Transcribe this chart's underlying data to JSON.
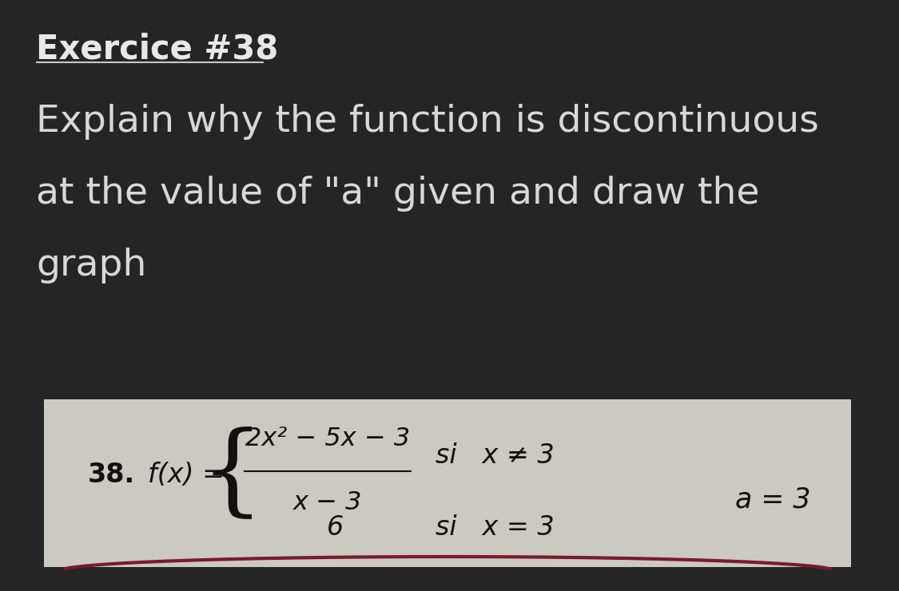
{
  "background_color": "#252525",
  "card_color": "#cac9c2",
  "title": "Exercice #38",
  "instruction_line1": "Explain why the function is discontinuous",
  "instruction_line2": "at the value of \"a\" given and draw the",
  "instruction_line3": "graph",
  "exercise_num": "38.",
  "fx_label": "f(x) =",
  "numerator": "2x² − 5x − 3",
  "denominator": "x − 3",
  "condition1_val": "si   x ≠ 3",
  "condition2_val": "6",
  "condition2_label": "si   x = 3",
  "a_value": "a = 3",
  "title_color": "#e8e8e8",
  "instruction_color": "#d8d8d8",
  "card_text_color": "#111111",
  "title_fontsize": 30,
  "instruction_fontsize": 34,
  "card_fontsize": 24,
  "underline_color": "#c8c8c8",
  "red_line_color": "#7a1a2a"
}
